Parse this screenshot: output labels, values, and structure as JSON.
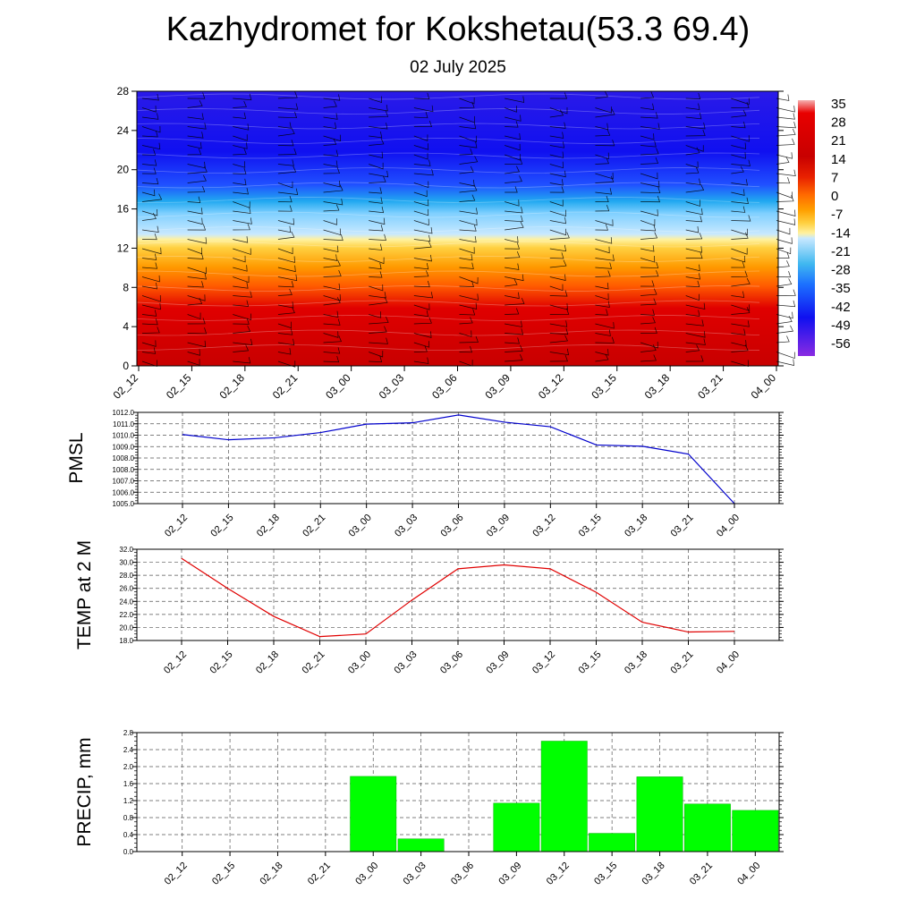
{
  "header": {
    "title": "Kazhydromet for Kokshetau(53.3 69.4)",
    "subtitle": "02 July 2025"
  },
  "chart_data": [
    {
      "type": "heatmap",
      "title": "",
      "xlabel": "",
      "ylabel": "",
      "x_categories": [
        "02_12",
        "02_15",
        "02_18",
        "02_21",
        "03_00",
        "03_03",
        "03_06",
        "03_09",
        "03_12",
        "03_15",
        "03_18",
        "03_21",
        "04_00"
      ],
      "y_ticks": [
        0,
        4,
        8,
        12,
        16,
        20,
        24,
        28
      ],
      "ylim": [
        0,
        28
      ],
      "colorbar": {
        "labels": [
          "35",
          "28",
          "21",
          "14",
          "7",
          "0",
          "-7",
          "-14",
          "-21",
          "-28",
          "-35",
          "-42",
          "-49",
          "-56"
        ]
      },
      "colors": {
        "deep_red": "#c80000",
        "red": "#e00000",
        "orange": "#ff7a00",
        "yellow": "#ffe040",
        "pale_blue": "#c8e8ff",
        "cyan": "#20a8f0",
        "blue": "#1010f0",
        "violet": "#8a2be2"
      },
      "legend": "right"
    },
    {
      "type": "line",
      "title": "",
      "xlabel": "",
      "ylabel": "PMSL",
      "categories": [
        "02_12",
        "02_15",
        "02_18",
        "02_21",
        "03_00",
        "03_03",
        "03_06",
        "03_09",
        "03_12",
        "03_15",
        "03_18",
        "03_21",
        "04_00"
      ],
      "values": [
        1010.3,
        1009.9,
        1010.05,
        1010.45,
        1011.1,
        1011.2,
        1011.8,
        1011.25,
        1010.9,
        1009.5,
        1009.4,
        1008.8,
        1005.0
      ],
      "ylim": [
        1005.0,
        1012.0
      ],
      "y_ticks": [
        "1005.0",
        "1006.0",
        "1007.0",
        "1008.0",
        "1008.0",
        "1009.0",
        "1010.0",
        "1011.0",
        "1012.0"
      ],
      "line_color": "#0000cc",
      "grid": true
    },
    {
      "type": "line",
      "title": "",
      "xlabel": "",
      "ylabel": "TEMP at 2 M",
      "categories": [
        "02_12",
        "02_15",
        "02_18",
        "02_21",
        "03_00",
        "03_03",
        "03_06",
        "03_09",
        "03_12",
        "03_15",
        "03_18",
        "03_21",
        "04_00"
      ],
      "values": [
        30.6,
        26.0,
        21.7,
        18.6,
        19.0,
        24.2,
        29.0,
        29.6,
        29.0,
        25.4,
        20.8,
        19.3,
        19.4
      ],
      "ylim": [
        18.0,
        32.0
      ],
      "y_ticks": [
        "18.0",
        "20.0",
        "22.0",
        "24.0",
        "26.0",
        "28.0",
        "30.0",
        "32.0"
      ],
      "line_color": "#e00000",
      "grid": true
    },
    {
      "type": "bar",
      "title": "",
      "xlabel": "",
      "ylabel": "PRECIP, mm",
      "categories": [
        "02_12",
        "02_15",
        "02_18",
        "02_21",
        "03_00",
        "03_03",
        "03_06",
        "03_09",
        "03_12",
        "03_15",
        "03_18",
        "03_21",
        "04_00"
      ],
      "values": [
        0,
        0,
        0,
        0,
        1.77,
        0.3,
        0,
        1.14,
        2.6,
        0.43,
        1.76,
        1.12,
        0.97
      ],
      "ylim": [
        0,
        2.8
      ],
      "y_ticks": [
        "0.0",
        "0.4",
        "0.8",
        "1.2",
        "1.6",
        "2.0",
        "2.4",
        "2.8"
      ],
      "bar_color": "#00ff00",
      "grid": true
    }
  ]
}
